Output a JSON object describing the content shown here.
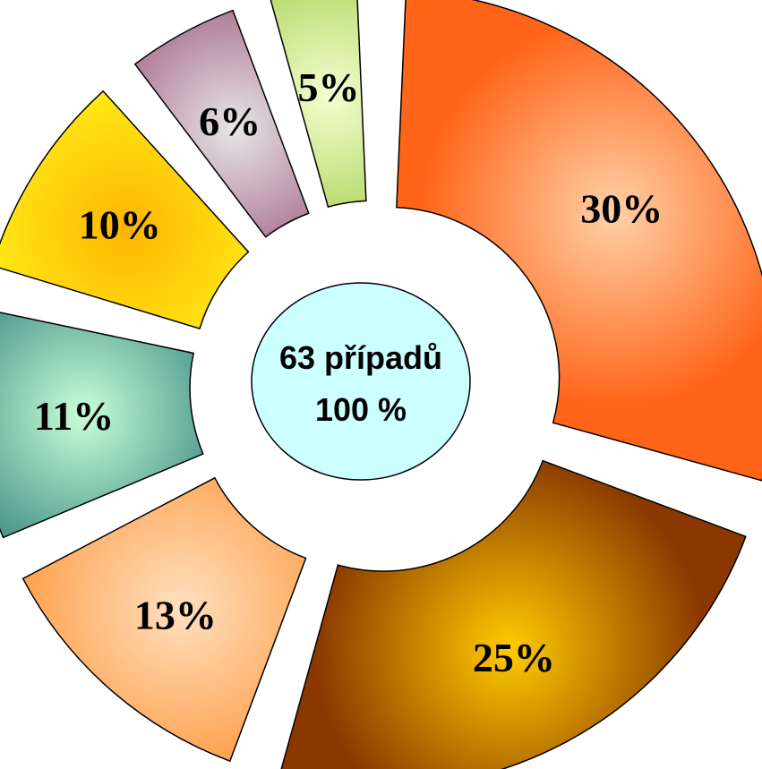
{
  "chart_data": {
    "type": "pie",
    "variant": "exploded-donut",
    "values": [
      30,
      25,
      13,
      11,
      10,
      6,
      5
    ],
    "labels": [
      "30%",
      "25%",
      "13%",
      "11%",
      "10%",
      "6%",
      "5%"
    ],
    "colors": [
      [
        "#ffd0a8",
        "#ff6418"
      ],
      [
        "#ffcc00",
        "#8a3800"
      ],
      [
        "#ffe0c0",
        "#ff9436"
      ],
      [
        "#c8ffd8",
        "#1e6f6f"
      ],
      [
        "#ffb400",
        "#ffff20"
      ],
      [
        "#e6e6e6",
        "#8c3a66"
      ],
      [
        "#f4ffd0",
        "#8ec22c"
      ]
    ],
    "center": {
      "line1": "63 případů",
      "line2": "100 %",
      "fill": "#ccffff"
    }
  }
}
